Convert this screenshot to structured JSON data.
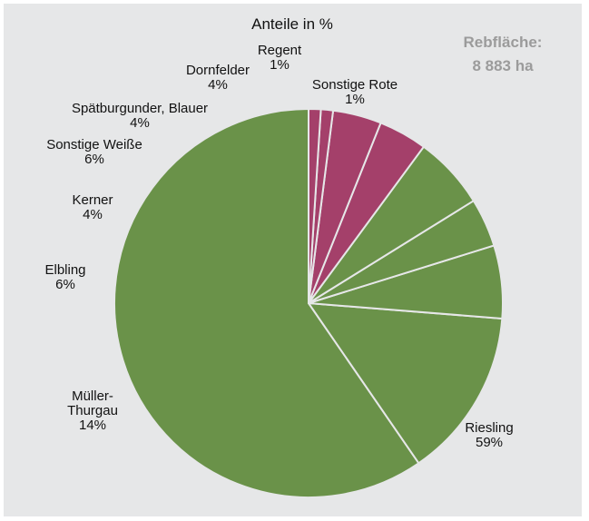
{
  "chart_data": {
    "type": "pie",
    "title": "Anteile in %",
    "total_label": [
      "Rebfläche:",
      "8 883 ha"
    ],
    "slices": [
      {
        "name": "Riesling",
        "label_lines": [
          "Riesling",
          "59%"
        ],
        "value": 59,
        "color": "#6a9249"
      },
      {
        "name": "Müller-Thurgau",
        "label_lines": [
          "Müller-",
          "Thurgau",
          "14%"
        ],
        "value": 14,
        "color": "#6a9249"
      },
      {
        "name": "Elbling",
        "label_lines": [
          "Elbling",
          "6%"
        ],
        "value": 6,
        "color": "#6a9249"
      },
      {
        "name": "Kerner",
        "label_lines": [
          "Kerner",
          "4%"
        ],
        "value": 4,
        "color": "#6a9249"
      },
      {
        "name": "Sonstige Weiße",
        "label_lines": [
          "Sonstige Weiße",
          "6%"
        ],
        "value": 6,
        "color": "#6a9249"
      },
      {
        "name": "Spätburgunder, Blauer",
        "label_lines": [
          "Spätburgunder, Blauer",
          "4%"
        ],
        "value": 4,
        "color": "#a4406a"
      },
      {
        "name": "Dornfelder",
        "label_lines": [
          "Dornfelder",
          "4%"
        ],
        "value": 4,
        "color": "#a4406a"
      },
      {
        "name": "Regent",
        "label_lines": [
          "Regent",
          "1%"
        ],
        "value": 1,
        "color": "#a4406a"
      },
      {
        "name": "Sonstige Rote",
        "label_lines": [
          "Sonstige Rote",
          "1%"
        ],
        "value": 1,
        "color": "#a4406a"
      }
    ]
  }
}
